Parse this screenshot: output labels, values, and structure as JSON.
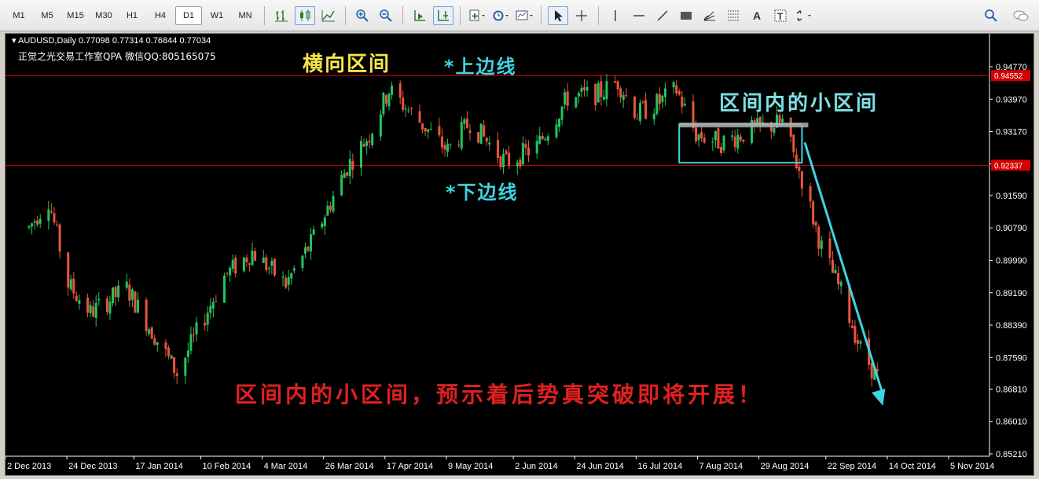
{
  "toolbar": {
    "timeframes": [
      "M1",
      "M5",
      "M15",
      "M30",
      "H1",
      "H4",
      "D1",
      "W1",
      "MN"
    ],
    "active_timeframe": "D1"
  },
  "chart_info": {
    "symbol_line": "AUDUSD,Daily  0.77098 0.77314 0.76844 0.77034",
    "studio_line": "正觉之光交易工作室QPA 微信QQ:805165075"
  },
  "annotations": {
    "sideways_range": "横向区间",
    "upper_line": "*上边线",
    "lower_line": "*下边线",
    "inner_range": "区间内的小区间",
    "conclusion": "区间内的小区间，预示着后势真突破即将开展！"
  },
  "colors": {
    "bull": "#22c55e",
    "bear": "#e8553d",
    "level_line": "#d40000",
    "box": "#3fd4e0",
    "arrow": "#3fd4e0",
    "axis_text": "#ffffff"
  },
  "chart_data": {
    "type": "candlestick",
    "symbol": "AUDUSD",
    "timeframe": "Daily",
    "y_ticks": [
      "0.94770",
      "0.93970",
      "0.93170",
      "0.92370",
      "0.91590",
      "0.90790",
      "0.89990",
      "0.89190",
      "0.88390",
      "0.87590",
      "0.86810",
      "0.86010",
      "0.85210"
    ],
    "y_range": [
      0.8521,
      0.9477
    ],
    "level_labels": [
      "0.94552",
      "0.92337"
    ],
    "levels": [
      0.94552,
      0.92337
    ],
    "x_labels": [
      "2 Dec 2013",
      "24 Dec 2013",
      "17 Jan 2014",
      "10 Feb 2014",
      "4 Mar 2014",
      "26 Mar 2014",
      "17 Apr 2014",
      "9 May 2014",
      "2 Jun 2014",
      "24 Jun 2014",
      "16 Jul 2014",
      "7 Aug 2014",
      "29 Aug 2014",
      "22 Sep 2014",
      "14 Oct 2014",
      "5 Nov 2014"
    ],
    "path_anchors": [
      {
        "date": "2013-12-02",
        "price": 0.908
      },
      {
        "date": "2013-12-09",
        "price": 0.915
      },
      {
        "date": "2013-12-16",
        "price": 0.894
      },
      {
        "date": "2013-12-24",
        "price": 0.887
      },
      {
        "date": "2014-01-06",
        "price": 0.893
      },
      {
        "date": "2014-01-24",
        "price": 0.872
      },
      {
        "date": "2014-02-10",
        "price": 0.896
      },
      {
        "date": "2014-02-20",
        "price": 0.902
      },
      {
        "date": "2014-03-04",
        "price": 0.894
      },
      {
        "date": "2014-03-13",
        "price": 0.904
      },
      {
        "date": "2014-03-26",
        "price": 0.923
      },
      {
        "date": "2014-04-03",
        "price": 0.931
      },
      {
        "date": "2014-04-10",
        "price": 0.942
      },
      {
        "date": "2014-04-24",
        "price": 0.932
      },
      {
        "date": "2014-05-01",
        "price": 0.927
      },
      {
        "date": "2014-05-09",
        "price": 0.934
      },
      {
        "date": "2014-05-22",
        "price": 0.924
      },
      {
        "date": "2014-06-02",
        "price": 0.928
      },
      {
        "date": "2014-06-13",
        "price": 0.94
      },
      {
        "date": "2014-06-24",
        "price": 0.941
      },
      {
        "date": "2014-07-01",
        "price": 0.944
      },
      {
        "date": "2014-07-08",
        "price": 0.936
      },
      {
        "date": "2014-07-16",
        "price": 0.939
      },
      {
        "date": "2014-07-22",
        "price": 0.942
      },
      {
        "date": "2014-07-29",
        "price": 0.931
      },
      {
        "date": "2014-08-07",
        "price": 0.929
      },
      {
        "date": "2014-08-18",
        "price": 0.932
      },
      {
        "date": "2014-08-29",
        "price": 0.934
      },
      {
        "date": "2014-09-05",
        "price": 0.92
      },
      {
        "date": "2014-09-12",
        "price": 0.903
      },
      {
        "date": "2014-09-19",
        "price": 0.892
      },
      {
        "date": "2014-09-26",
        "price": 0.878
      },
      {
        "date": "2014-10-02",
        "price": 0.871
      }
    ],
    "inner_box": {
      "start": "2014-07-23",
      "end": "2014-09-05",
      "top": 0.9335,
      "bottom": 0.924
    },
    "arrow": {
      "start": {
        "date": "2014-09-06",
        "price": 0.929
      },
      "end": {
        "date": "2014-10-04",
        "price": 0.864
      }
    }
  }
}
